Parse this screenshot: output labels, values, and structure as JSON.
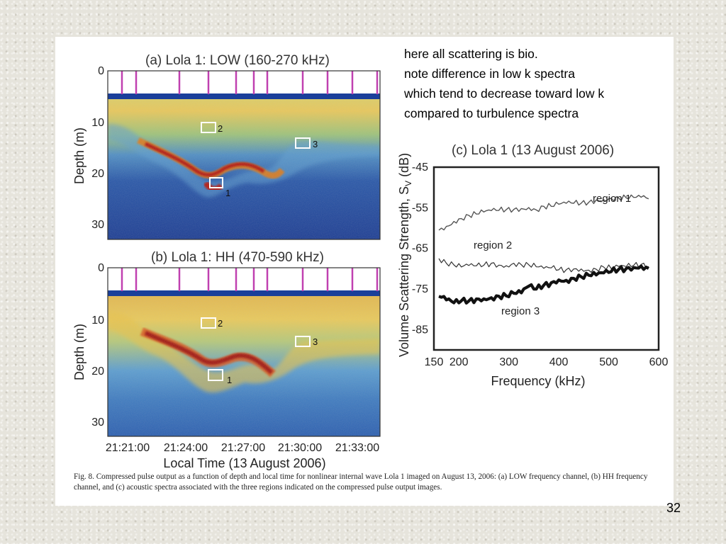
{
  "slide": {
    "notes": [
      "here all scattering is bio.",
      "note difference in low k spectra",
      "which tend to decrease toward low k",
      "compared to turbulence spectra"
    ],
    "page_number": "32"
  },
  "figure": {
    "panel_a_title": "(a) Lola 1: LOW (160-270 kHz)",
    "panel_b_title": "(b) Lola 1: HH (470-590 kHz)",
    "panel_c_title": "(c) Lola 1 (13 August 2006)",
    "depth_label": "Depth (m)",
    "depth_ticks": [
      "0",
      "10",
      "20",
      "30"
    ],
    "time_label": "Local Time (13 August 2006)",
    "time_ticks": [
      "21:21:00",
      "21:24:00",
      "21:27:00",
      "21:30:00",
      "21:33:00"
    ],
    "region_labels": [
      "1",
      "2",
      "3"
    ],
    "caption": "Fig. 8.   Compressed pulse output as a function of depth and local time for nonlinear internal wave Lola 1 imaged on August 13, 2006: (a) LOW frequency channel, (b) HH frequency channel, and (c) acoustic spectra associated with the three regions indicated on the compressed pulse output images."
  },
  "colors": {
    "background_deep": "#1a3f9a",
    "scatter_band": "#e3c24a",
    "peak_scatter": "#b3160e",
    "ping_marker": "#c040b0"
  },
  "chart_data": {
    "type": "line",
    "title": "(c) Lola 1 (13 August 2006)",
    "xlabel": "Frequency (kHz)",
    "ylabel": "Volume Scattering Strength, S_V (dB)",
    "xlim": [
      150,
      600
    ],
    "ylim": [
      -90,
      -45
    ],
    "x_ticks": [
      "150",
      "200",
      "300",
      "400",
      "500",
      "600"
    ],
    "y_ticks": [
      "-45",
      "-55",
      "-65",
      "-75",
      "-85"
    ],
    "grid": false,
    "series": [
      {
        "name": "region 1",
        "x": [
          160,
          175,
          190,
          205,
          220,
          235,
          250,
          265,
          280,
          295,
          310,
          325,
          340,
          355,
          370,
          385,
          400,
          415,
          430,
          445,
          460,
          475,
          490,
          505,
          520,
          535,
          550,
          565,
          580
        ],
        "values": [
          -60.5,
          -59.5,
          -58.5,
          -57.5,
          -57,
          -56.5,
          -56,
          -55.8,
          -55.5,
          -55.6,
          -55.3,
          -55.2,
          -55,
          -55.4,
          -54.8,
          -54.5,
          -54.2,
          -53.9,
          -53.8,
          -54,
          -53.5,
          -53.2,
          -53.0,
          -52.6,
          -52.7,
          -52.4,
          -52.6,
          -52.3,
          -52.8
        ]
      },
      {
        "name": "region 2",
        "x": [
          160,
          175,
          190,
          205,
          220,
          235,
          250,
          265,
          280,
          295,
          310,
          325,
          340,
          355,
          370,
          385,
          400,
          415,
          430,
          445,
          460,
          475,
          490,
          505,
          520,
          535,
          550,
          565,
          580
        ],
        "values": [
          -67.5,
          -68.5,
          -69.2,
          -69.5,
          -69.2,
          -69.4,
          -69.0,
          -68.8,
          -69.0,
          -69.3,
          -68.7,
          -68.9,
          -69.2,
          -69.4,
          -70.0,
          -69.8,
          -70.2,
          -70.4,
          -69.9,
          -70.2,
          -70.3,
          -70.1,
          -69.7,
          -69.8,
          -69.6,
          -69.4,
          -69.2,
          -69.0,
          -69.3
        ]
      },
      {
        "name": "region 3",
        "x": [
          160,
          175,
          190,
          205,
          220,
          235,
          250,
          265,
          280,
          295,
          310,
          325,
          340,
          355,
          370,
          385,
          400,
          415,
          430,
          445,
          460,
          475,
          490,
          505,
          520,
          535,
          550,
          565,
          580
        ],
        "values": [
          -76.8,
          -77.6,
          -78.4,
          -78.0,
          -77.8,
          -77.6,
          -77.3,
          -77.2,
          -76.8,
          -76.6,
          -76.2,
          -75.8,
          -74.4,
          -75.0,
          -74.0,
          -73.6,
          -72.6,
          -73.0,
          -72.3,
          -72.0,
          -71.7,
          -71.4,
          -71.2,
          -70.6,
          -70.2,
          -70.0,
          -69.6,
          -69.5,
          -69.8
        ]
      }
    ]
  }
}
